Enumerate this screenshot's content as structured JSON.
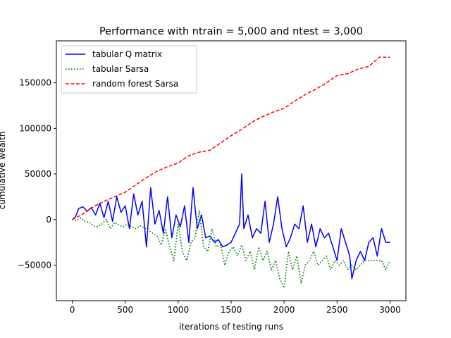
{
  "chart_data": {
    "type": "line",
    "title": "Performance with ntrain = 5,000 and ntest = 3,000",
    "xlabel": "iterations of testing runs",
    "ylabel": "cumulative wealth",
    "xlim": [
      -150,
      3150
    ],
    "ylim": [
      -89000,
      196000
    ],
    "xticks": [
      0,
      500,
      1000,
      1500,
      2000,
      2500,
      3000
    ],
    "yticks": [
      -50000,
      0,
      50000,
      100000,
      150000
    ],
    "xtick_labels": [
      "0",
      "500",
      "1000",
      "1500",
      "2000",
      "2500",
      "3000"
    ],
    "ytick_labels": [
      "−50000",
      "0",
      "50000",
      "100000",
      "150000"
    ],
    "grid": false,
    "legend_position": "top-left",
    "series": [
      {
        "name": "tabular Q matrix",
        "color": "#0000ff",
        "style": "solid",
        "x": [
          0,
          30,
          60,
          100,
          140,
          180,
          220,
          260,
          300,
          340,
          380,
          420,
          460,
          500,
          540,
          580,
          620,
          660,
          700,
          740,
          780,
          820,
          860,
          900,
          940,
          980,
          1020,
          1060,
          1100,
          1140,
          1180,
          1220,
          1260,
          1300,
          1340,
          1380,
          1420,
          1460,
          1500,
          1540,
          1580,
          1600,
          1620,
          1660,
          1700,
          1740,
          1780,
          1820,
          1860,
          1900,
          1940,
          1980,
          2020,
          2060,
          2100,
          2140,
          2180,
          2220,
          2260,
          2300,
          2340,
          2380,
          2420,
          2460,
          2500,
          2540,
          2580,
          2620,
          2640,
          2680,
          2720,
          2760,
          2800,
          2840,
          2880,
          2920,
          2960,
          3000
        ],
        "y": [
          0,
          3000,
          12000,
          14000,
          9000,
          13000,
          5000,
          18000,
          2000,
          20000,
          -2000,
          25000,
          8000,
          15000,
          -10000,
          28000,
          5000,
          20000,
          -30000,
          35000,
          -5000,
          10000,
          -15000,
          25000,
          -20000,
          5000,
          -8000,
          15000,
          -25000,
          35000,
          -10000,
          5000,
          -20000,
          -18000,
          -25000,
          -22000,
          -30000,
          -28000,
          -25000,
          -15000,
          -5000,
          50000,
          -10000,
          5000,
          -20000,
          -10000,
          -15000,
          20000,
          -25000,
          -5000,
          25000,
          -10000,
          -30000,
          -20000,
          -5000,
          -10000,
          15000,
          -25000,
          -5000,
          -30000,
          -10000,
          -20000,
          -15000,
          -30000,
          -45000,
          -10000,
          -25000,
          -40000,
          -65000,
          -45000,
          -35000,
          -45000,
          -25000,
          -20000,
          -40000,
          -10000,
          -25000,
          -25000
        ]
      },
      {
        "name": "tabular Sarsa",
        "color": "#008000",
        "style": "dotted",
        "x": [
          0,
          40,
          80,
          120,
          160,
          200,
          240,
          280,
          320,
          360,
          400,
          440,
          480,
          520,
          560,
          600,
          640,
          680,
          720,
          760,
          800,
          840,
          880,
          920,
          960,
          1000,
          1040,
          1080,
          1120,
          1160,
          1200,
          1240,
          1280,
          1320,
          1360,
          1400,
          1440,
          1480,
          1520,
          1560,
          1600,
          1640,
          1680,
          1720,
          1760,
          1800,
          1840,
          1880,
          1920,
          1960,
          2000,
          2040,
          2080,
          2120,
          2160,
          2200,
          2240,
          2280,
          2320,
          2360,
          2400,
          2440,
          2480,
          2520,
          2560,
          2600,
          2640,
          2680,
          2720,
          2760,
          2800,
          2840,
          2880,
          2920,
          2960,
          3000
        ],
        "y": [
          0,
          -1000,
          2000,
          -2000,
          -3000,
          -7000,
          -8000,
          -5000,
          0,
          -10000,
          -3000,
          -6000,
          -8000,
          -5000,
          -8000,
          -10000,
          -7000,
          -9000,
          -12000,
          -15000,
          -18000,
          -28000,
          -10000,
          -30000,
          -45000,
          -5000,
          -35000,
          -45000,
          -25000,
          -20000,
          10000,
          -30000,
          -35000,
          -10000,
          -30000,
          -28000,
          -50000,
          -35000,
          -30000,
          -40000,
          -28000,
          -45000,
          -35000,
          -55000,
          -30000,
          -45000,
          -35000,
          -55000,
          -45000,
          -65000,
          -75000,
          -35000,
          -55000,
          -40000,
          -70000,
          -50000,
          -45000,
          -35000,
          -50000,
          -45000,
          -40000,
          -55000,
          -45000,
          -50000,
          -45000,
          -55000,
          -50000,
          -55000,
          -50000,
          -45000,
          -45000,
          -45000,
          -45000,
          -45000,
          -55000,
          -45000
        ]
      },
      {
        "name": "random forest Sarsa",
        "color": "#ff0000",
        "style": "dashed",
        "x": [
          0,
          100,
          200,
          300,
          400,
          500,
          600,
          700,
          800,
          900,
          1000,
          1100,
          1200,
          1300,
          1400,
          1500,
          1600,
          1700,
          1800,
          1900,
          2000,
          2100,
          2200,
          2300,
          2400,
          2500,
          2600,
          2700,
          2800,
          2900,
          3000
        ],
        "y": [
          0,
          6000,
          14000,
          20000,
          25000,
          30000,
          38000,
          46000,
          53000,
          58000,
          62000,
          70000,
          74000,
          76000,
          84000,
          92000,
          99000,
          107000,
          113000,
          118000,
          122000,
          130000,
          137000,
          143000,
          150000,
          158000,
          160000,
          165000,
          168000,
          178000,
          178000
        ]
      }
    ]
  }
}
